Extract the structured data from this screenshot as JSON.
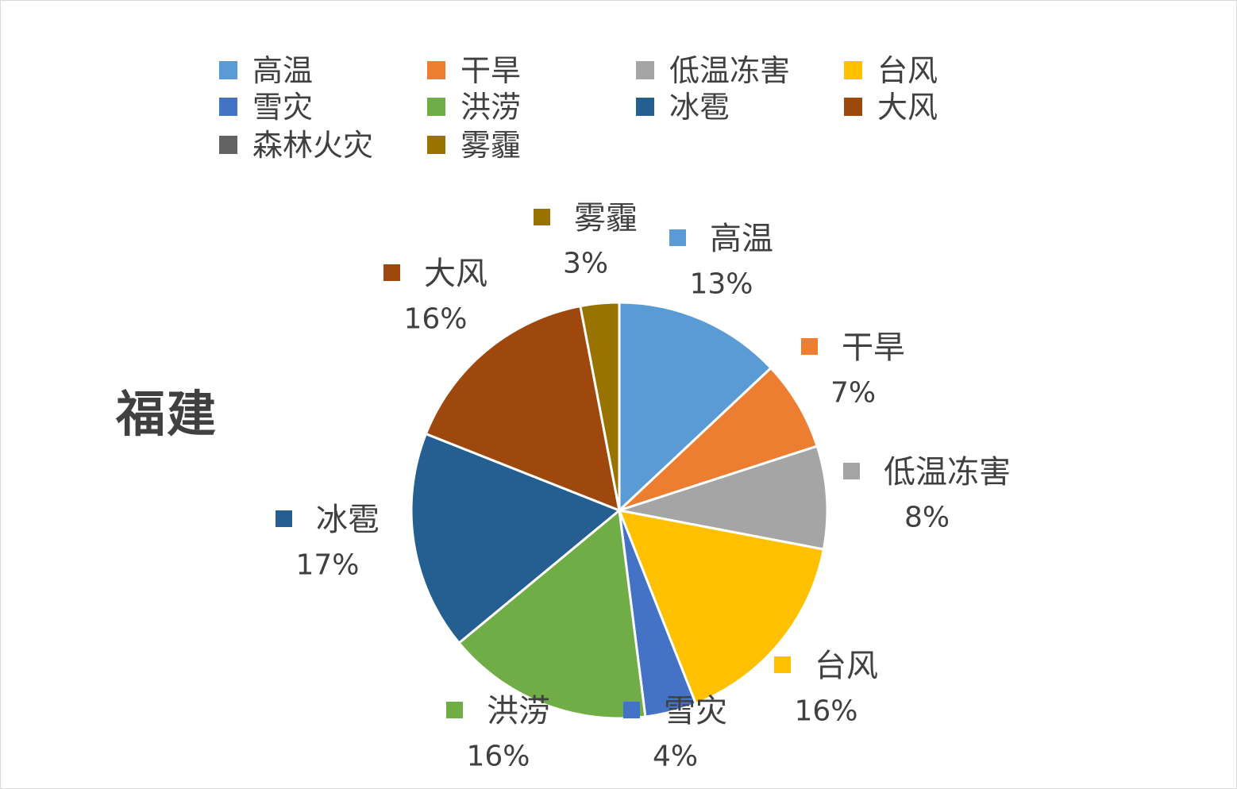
{
  "chart_data": {
    "type": "pie",
    "title": "福建",
    "legend_position": "top",
    "slices": [
      {
        "label": "高温",
        "value": 13,
        "percent_label": "13%",
        "color": "#5b9bd5"
      },
      {
        "label": "干旱",
        "value": 7,
        "percent_label": "7%",
        "color": "#ed7d31"
      },
      {
        "label": "低温冻害",
        "value": 8,
        "percent_label": "8%",
        "color": "#a5a5a5"
      },
      {
        "label": "台风",
        "value": 16,
        "percent_label": "16%",
        "color": "#ffc000"
      },
      {
        "label": "雪灾",
        "value": 4,
        "percent_label": "4%",
        "color": "#4472c4"
      },
      {
        "label": "洪涝",
        "value": 16,
        "percent_label": "16%",
        "color": "#70ad47"
      },
      {
        "label": "冰雹",
        "value": 17,
        "percent_label": "17%",
        "color": "#255e91"
      },
      {
        "label": "大风",
        "value": 16,
        "percent_label": "16%",
        "color": "#9e480e"
      },
      {
        "label": "森林火灾",
        "value": 0,
        "percent_label": "",
        "color": "#636363"
      },
      {
        "label": "雾霾",
        "value": 3,
        "percent_label": "3%",
        "color": "#997300"
      }
    ]
  }
}
